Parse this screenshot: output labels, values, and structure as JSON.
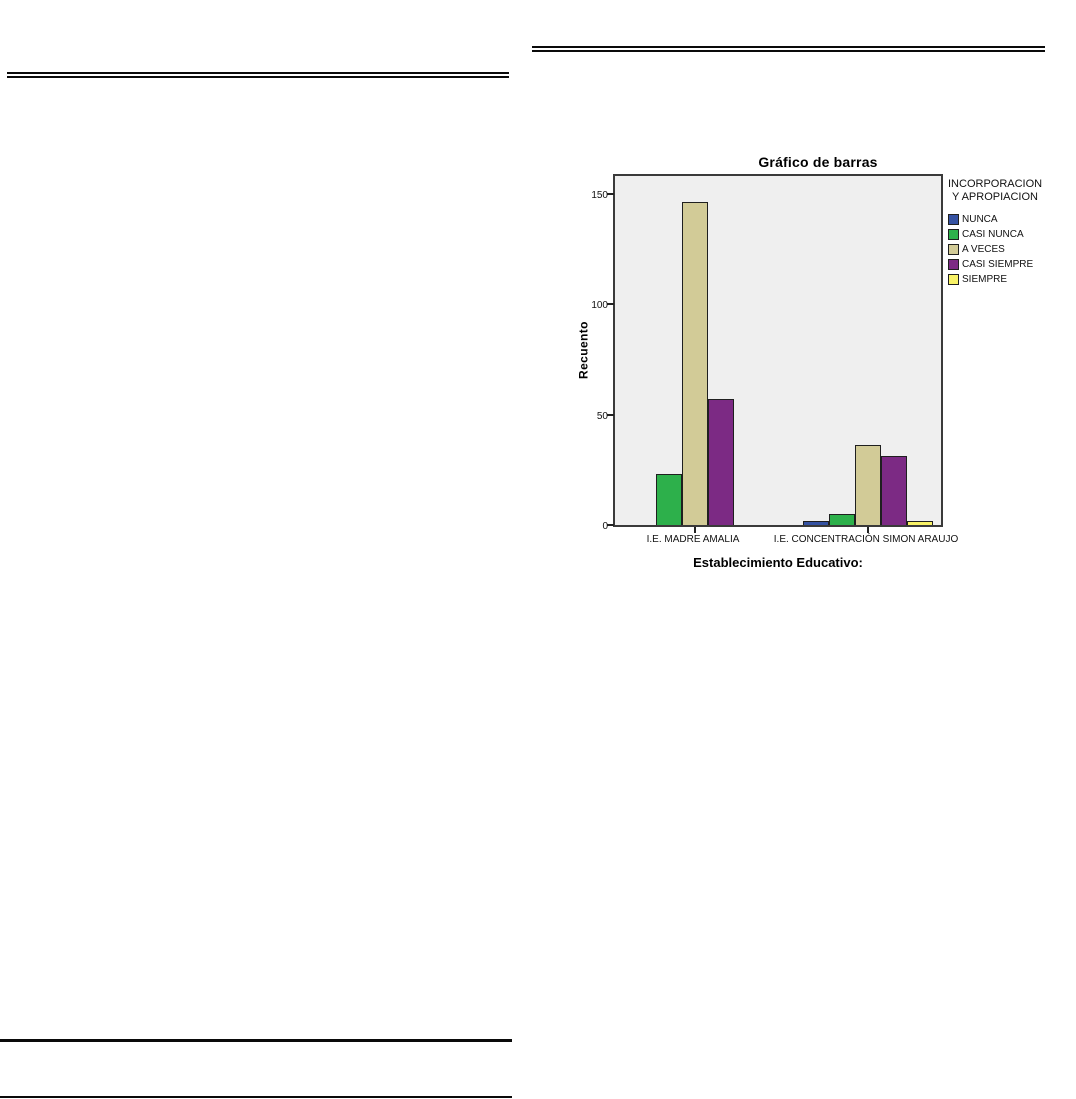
{
  "chart_data": {
    "type": "bar",
    "title": "Gráfico de barras",
    "xlabel": "Establecimiento Educativo:",
    "ylabel": "Recuento",
    "categories": [
      "I.E. MADRE AMALIA",
      "I.E. CONCENTRACIÓN SIMON ARAUJO"
    ],
    "legend_title_line1": "INCORPORACION",
    "legend_title_line2": "Y APROPIACION",
    "legend_position": "right",
    "grid": false,
    "plot_background": "#efefef",
    "yticks": [
      0,
      50,
      100,
      150
    ],
    "ylim": [
      0,
      160
    ],
    "series": [
      {
        "name": "NUNCA",
        "color": "#3552A2",
        "values": [
          0,
          2
        ]
      },
      {
        "name": "CASI NUNCA",
        "color": "#2DB04B",
        "values": [
          23,
          5
        ]
      },
      {
        "name": "A VECES",
        "color": "#D2CB97",
        "values": [
          146,
          36
        ]
      },
      {
        "name": "CASI SIEMPRE",
        "color": "#7C2A84",
        "values": [
          57,
          31
        ]
      },
      {
        "name": "SIEMPRE",
        "color": "#F8F266",
        "values": [
          0,
          2
        ]
      }
    ]
  }
}
